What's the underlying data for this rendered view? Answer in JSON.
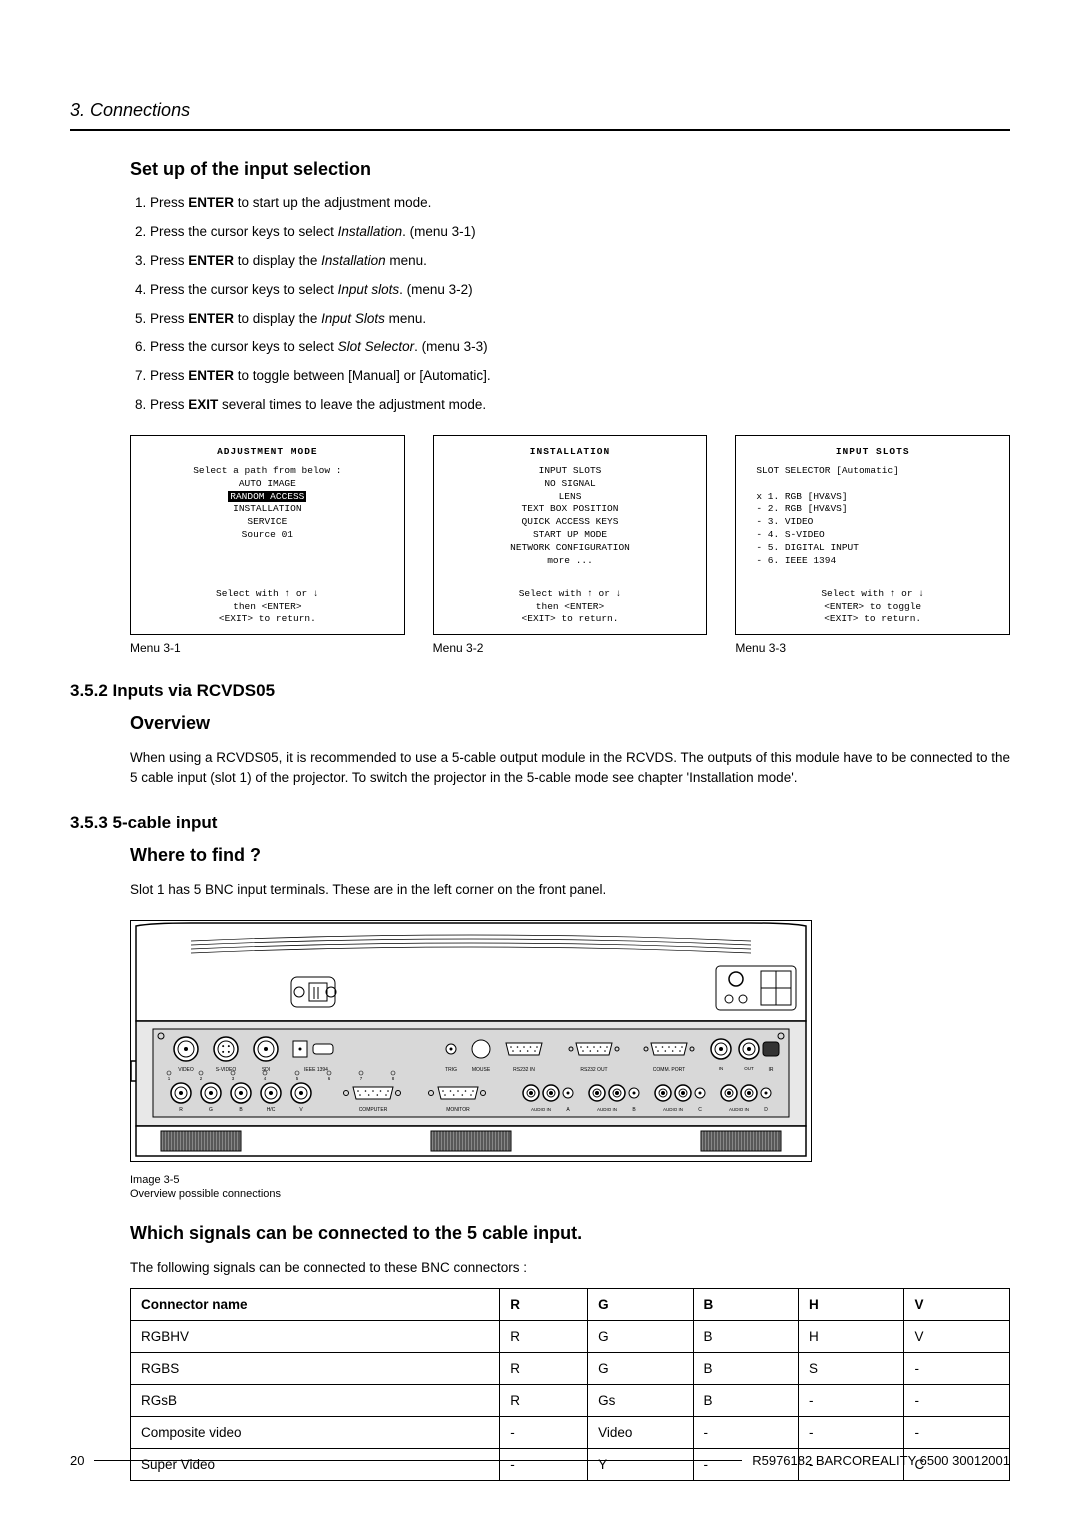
{
  "chapter": "3.  Connections",
  "h_setup": "Set up of the input selection",
  "steps": [
    "Press <b>ENTER</b> to start up the adjustment mode.",
    "Press the cursor keys to select <i>Installation</i>.  (menu 3-1)",
    "Press <b>ENTER</b> to display the <i>Installation</i> menu.",
    "Press the cursor keys to select <i>Input slots</i>.  (menu 3-2)",
    "Press <b>ENTER</b> to display the <i>Input Slots</i> menu.",
    "Press the cursor keys to select <i>Slot Selector</i>.  (menu 3-3)",
    "Press <b>ENTER</b> to toggle between [Manual] or [Automatic].",
    "Press <b>EXIT</b> several times to leave the adjustment mode."
  ],
  "menu1": {
    "title": "ADJUSTMENT MODE",
    "body_pre": "Select a path from below :\nAUTO IMAGE",
    "body_inv": "RANDOM ACCESS",
    "body_post": "INSTALLATION\nSERVICE\nSource 01",
    "foot": "Select with ↑ or ↓\nthen <ENTER>\n<EXIT> to return.",
    "caption": "Menu 3-1"
  },
  "menu2": {
    "title": "INSTALLATION",
    "body": "INPUT SLOTS\nNO SIGNAL\nLENS\nTEXT BOX POSITION\nQUICK ACCESS KEYS\nSTART UP MODE\nNETWORK CONFIGURATION\nmore ...",
    "foot": "Select with ↑ or ↓\nthen <ENTER>\n<EXIT> to return.",
    "caption": "Menu 3-2"
  },
  "menu3": {
    "title": "INPUT SLOTS",
    "body": "SLOT SELECTOR [Automatic]\n\nx 1. RGB [HV&VS]\n- 2. RGB [HV&VS]\n- 3. VIDEO\n- 4. S-VIDEO\n- 5. DIGITAL INPUT\n- 6. IEEE 1394",
    "foot": "Select with ↑ or ↓\n<ENTER> to toggle\n<EXIT> to return.",
    "caption": "Menu 3-3"
  },
  "h_352": "3.5.2 Inputs via RCVDS05",
  "h_overview": "Overview",
  "p_overview": "When using a RCVDS05, it is recommended to use a 5-cable output module in the RCVDS. The outputs of this module have to be connected to the 5 cable input (slot 1) of the projector. To switch the projector in the 5-cable mode see chapter 'Installation mode'.",
  "h_353": "3.5.3 5-cable input",
  "h_where": "Where to find ?",
  "p_where": "Slot 1 has 5 BNC input terminals.  These are in the left corner on the front panel.",
  "img_caption": "Image 3-5\nOverview possible connections",
  "h_which": "Which signals can be connected to the 5 cable input.",
  "p_which": "The following signals can be connected to these BNC connectors :",
  "table": {
    "head": [
      "Connector name",
      "R",
      "G",
      "B",
      "H",
      "V"
    ],
    "rows": [
      [
        "RGBHV",
        "R",
        "G",
        "B",
        "H",
        "V"
      ],
      [
        "RGBS",
        "R",
        "G",
        "B",
        "S",
        "-"
      ],
      [
        "RGsB",
        "R",
        "Gs",
        "B",
        "-",
        "-"
      ],
      [
        "Composite video",
        "-",
        "Video",
        "-",
        "-",
        "-"
      ],
      [
        "Super Video",
        "-",
        "Y",
        "-",
        "-",
        "C"
      ]
    ]
  },
  "colwidths": [
    "42%",
    "10%",
    "12%",
    "12%",
    "12%",
    "12%"
  ],
  "panel": {
    "label_row1": [
      "VIDEO",
      "1",
      "S-VIDEO",
      "2",
      "SDI",
      "3",
      "IEEE 1394",
      "4",
      "",
      "TRIG",
      "MOUSE",
      "RS232 IN",
      "",
      "RS232 OUT",
      "",
      "COMM. PORT",
      "",
      "IN",
      "OUT",
      "IR"
    ],
    "label_row2": [
      "R",
      "G",
      "B",
      "H/C",
      "V",
      "1",
      "COMPUTER",
      "2",
      "MONITOR",
      "AUDIO IN",
      "A",
      "AUDIO IN",
      "B",
      "AUDIO IN",
      "C",
      "AUDIO IN",
      "D"
    ],
    "slot_nums": [
      "1",
      "2",
      "3",
      "4",
      "5",
      "6",
      "7",
      "8"
    ]
  },
  "page_num": "20",
  "doc_ref": "R5976182  BARCOREALITY 6500  30012001"
}
